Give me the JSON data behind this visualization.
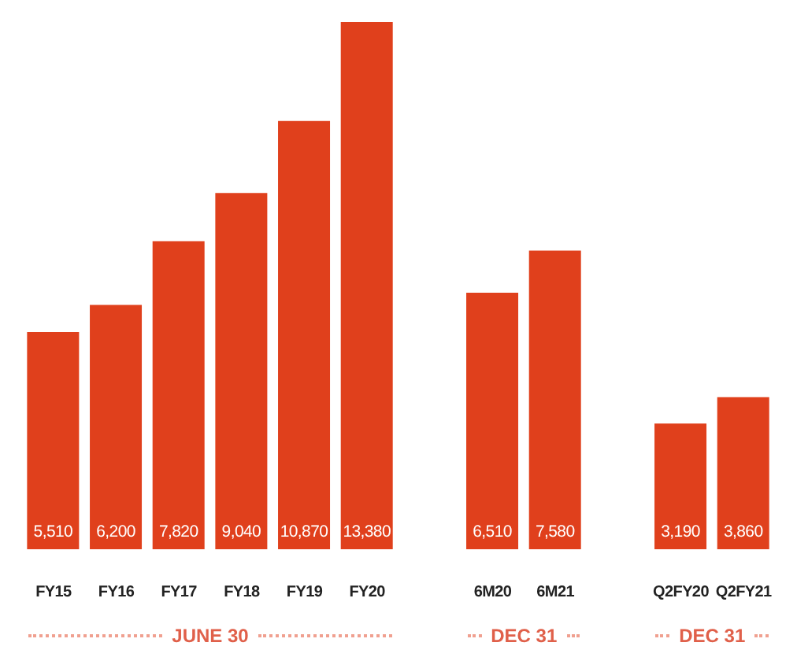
{
  "chart_data": {
    "type": "bar",
    "categories": [
      "FY15",
      "FY16",
      "FY17",
      "FY18",
      "FY19",
      "FY20",
      null,
      "6M20",
      "6M21",
      null,
      "Q2FY20",
      "Q2FY21"
    ],
    "values": [
      5510,
      6200,
      7820,
      9040,
      10870,
      13380,
      null,
      6510,
      7580,
      null,
      3190,
      3860
    ],
    "value_labels": [
      "5,510",
      "6,200",
      "7,820",
      "9,040",
      "10,870",
      "13,380",
      null,
      "6,510",
      "7,580",
      null,
      "3,190",
      "3,860"
    ],
    "color": "#e0401c",
    "tick_labels": "x",
    "annotations": [
      "JUNE 30",
      "DEC 31",
      "DEC 31"
    ]
  }
}
